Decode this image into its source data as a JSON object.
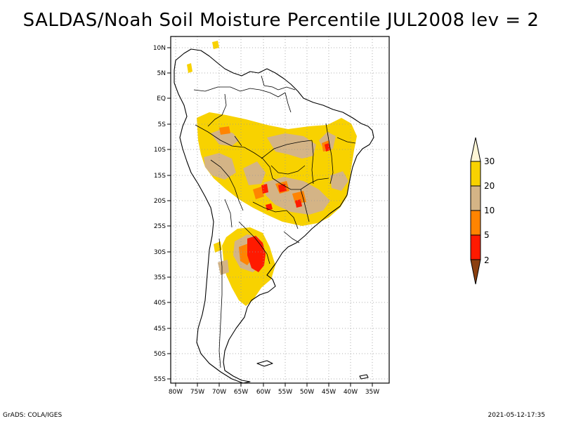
{
  "title": "SALDAS/Noah Soil Moisture Percentile JUL2008 lev = 2",
  "footer": {
    "left": "GrADS: COLA/IGES",
    "right": "2021-05-12-17:35"
  },
  "map": {
    "lon_range": [
      -81,
      -30
    ],
    "lat_range": [
      -56,
      12
    ],
    "lat_ticks": [
      "10N",
      "5N",
      "EQ",
      "5S",
      "10S",
      "15S",
      "20S",
      "25S",
      "30S",
      "35S",
      "40S",
      "45S",
      "50S",
      "55S"
    ],
    "lon_ticks": [
      "80W",
      "75W",
      "70W",
      "65W",
      "60W",
      "55W",
      "50W",
      "45W",
      "40W",
      "35W"
    ],
    "grid": true
  },
  "legend": {
    "labels": [
      "30",
      "20",
      "10",
      "5",
      "2"
    ],
    "colors": {
      "above30": "#fff6d6",
      "c20_30": "#f8d200",
      "c10_20": "#d4b486",
      "c5_10": "#ff8400",
      "c2_5": "#ff1a00",
      "below2": "#8b4010"
    }
  }
}
